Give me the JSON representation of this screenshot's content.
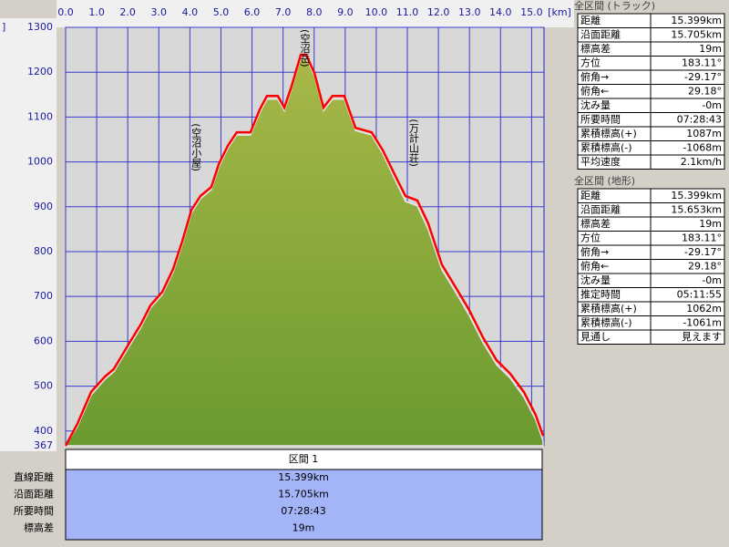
{
  "chart_data": {
    "type": "area",
    "xunit": "[km]",
    "yunit": "]",
    "xlim": [
      0,
      15.399
    ],
    "ylim": [
      367,
      1300
    ],
    "xticks": [
      {
        "value": 0,
        "label": "0.0"
      },
      {
        "value": 1,
        "label": "1.0"
      },
      {
        "value": 2,
        "label": "2.0"
      },
      {
        "value": 3,
        "label": "3.0"
      },
      {
        "value": 4,
        "label": "4.0"
      },
      {
        "value": 5,
        "label": "5.0"
      },
      {
        "value": 6,
        "label": "6.0"
      },
      {
        "value": 7,
        "label": "7.0"
      },
      {
        "value": 8,
        "label": "8.0"
      },
      {
        "value": 9,
        "label": "9.0"
      },
      {
        "value": 10,
        "label": "10.0"
      },
      {
        "value": 11,
        "label": "11.0"
      },
      {
        "value": 12,
        "label": "12.0"
      },
      {
        "value": 13,
        "label": "13.0"
      },
      {
        "value": 14,
        "label": "14.0"
      },
      {
        "value": 15,
        "label": "15.0"
      }
    ],
    "yticks": [
      367,
      400,
      500,
      600,
      700,
      800,
      900,
      1000,
      1100,
      1200,
      1300
    ],
    "grid": true,
    "x": [
      0,
      0.38,
      0.82,
      1.26,
      1.55,
      1.99,
      2.43,
      2.73,
      3.11,
      3.46,
      3.75,
      4.05,
      4.34,
      4.69,
      4.93,
      5.22,
      5.51,
      5.95,
      6.25,
      6.48,
      6.83,
      7.04,
      7.27,
      7.57,
      7.74,
      8.01,
      8.3,
      8.59,
      8.97,
      9.33,
      9.85,
      10.21,
      10.64,
      10.94,
      11.32,
      11.67,
      12.11,
      12.55,
      12.99,
      13.43,
      13.87,
      14.31,
      14.75,
      15.13,
      15.37
    ],
    "series": [
      {
        "name": "terrain",
        "color": "#6a9a30",
        "values": [
          367,
          410,
          480,
          515,
          532,
          582,
          632,
          674,
          704,
          754,
          815,
          886,
          918,
          938,
          988,
          1030,
          1060,
          1060,
          1110,
          1140,
          1140,
          1114,
          1162,
          1232,
          1232,
          1192,
          1114,
          1140,
          1140,
          1070,
          1060,
          1018,
          955,
          912,
          902,
          850,
          760,
          710,
          658,
          598,
          548,
          518,
          476,
          425,
          378
        ]
      },
      {
        "name": "track",
        "color": "#ff0000",
        "values": [
          367,
          416,
          487,
          521,
          538,
          589,
          639,
          680,
          710,
          761,
          822,
          893,
          924,
          944,
          995,
          1036,
          1066,
          1066,
          1117,
          1147,
          1147,
          1121,
          1168,
          1239,
          1239,
          1198,
          1121,
          1147,
          1147,
          1076,
          1066,
          1026,
          965,
          924,
          914,
          863,
          771,
          721,
          670,
          609,
          558,
          528,
          487,
          436,
          389
        ]
      }
    ],
    "annotations": [
      {
        "text": "(空沼岳)",
        "x": 7.7,
        "y": 1300
      },
      {
        "text": "(空沼小屋)",
        "x": 4.2,
        "y": 1090
      },
      {
        "text": "(万計山荘)",
        "x": 11.2,
        "y": 1100
      }
    ]
  },
  "section": {
    "header": "区間 1",
    "rows": [
      [
        "直線距離",
        "15.399km"
      ],
      [
        "沿面距離",
        "15.705km"
      ],
      [
        "所要時間",
        "07:28:43"
      ],
      [
        "標高差",
        "19m"
      ]
    ]
  },
  "track_panel": {
    "title": "全区間 (トラック)",
    "rows": [
      [
        "距離",
        "15.399km"
      ],
      [
        "沿面距離",
        "15.705km"
      ],
      [
        "標高差",
        "19m"
      ],
      [
        "方位",
        "183.11°"
      ],
      [
        "俯角→",
        "-29.17°"
      ],
      [
        "俯角←",
        "29.18°"
      ],
      [
        "沈み量",
        "-0m"
      ],
      [
        "所要時間",
        "07:28:43"
      ],
      [
        "累積標高(+)",
        "1087m"
      ],
      [
        "累積標高(-)",
        "-1068m"
      ],
      [
        "平均速度",
        "2.1km/h"
      ]
    ]
  },
  "terrain_panel": {
    "title": "全区間 (地形)",
    "rows": [
      [
        "距離",
        "15.399km"
      ],
      [
        "沿面距離",
        "15.653km"
      ],
      [
        "標高差",
        "19m"
      ],
      [
        "方位",
        "183.11°"
      ],
      [
        "俯角→",
        "-29.17°"
      ],
      [
        "俯角←",
        "29.18°"
      ],
      [
        "沈み量",
        "-0m"
      ],
      [
        "推定時間",
        "05:11:55"
      ],
      [
        "累積標高(+)",
        "1062m"
      ],
      [
        "累積標高(-)",
        "-1061m"
      ],
      [
        "見通し",
        "見えます"
      ]
    ]
  }
}
